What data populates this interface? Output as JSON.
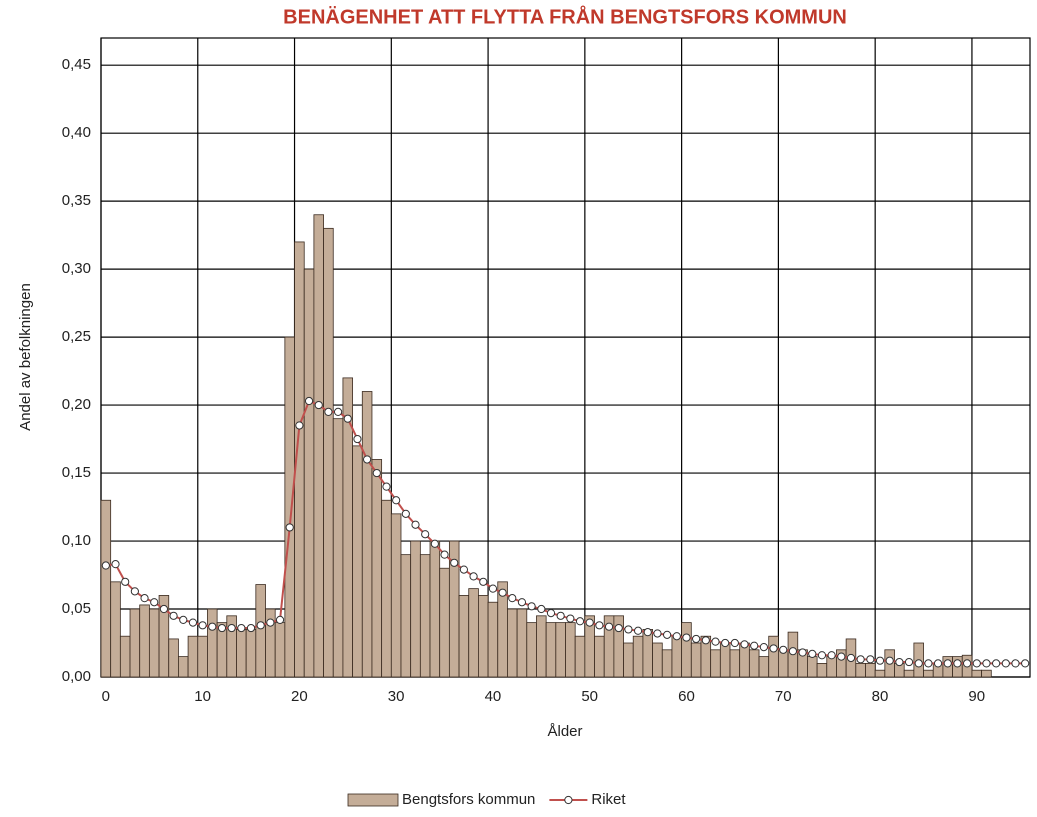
{
  "chart_data": {
    "type": "combo",
    "title": "BENÄGENHET ATT FLYTTA FRÅN BENGTSFORS KOMMUN",
    "x_label": "Ålder",
    "y_label": "Andel av befolkningen",
    "categories": [
      0,
      null,
      null,
      null,
      null,
      null,
      null,
      null,
      null,
      null,
      10,
      null,
      null,
      null,
      null,
      null,
      null,
      null,
      null,
      null,
      20,
      null,
      null,
      null,
      null,
      null,
      null,
      null,
      null,
      null,
      30,
      null,
      null,
      null,
      null,
      null,
      null,
      null,
      null,
      null,
      40,
      null,
      null,
      null,
      null,
      null,
      null,
      null,
      null,
      null,
      50,
      null,
      null,
      null,
      null,
      null,
      null,
      null,
      null,
      null,
      60,
      null,
      null,
      null,
      null,
      null,
      null,
      null,
      null,
      null,
      70,
      null,
      null,
      null,
      null,
      null,
      null,
      null,
      null,
      null,
      80,
      null,
      null,
      null,
      null,
      null,
      null,
      null,
      null,
      null,
      90,
      null,
      null,
      null,
      null,
      null
    ],
    "series": [
      {
        "name": "Bengtsfors kommun",
        "type": "bar",
        "color": "#c4ad98",
        "values": [
          0.13,
          0.07,
          0.03,
          0.05,
          0.053,
          0.05,
          0.06,
          0.028,
          0.015,
          0.03,
          0.03,
          0.05,
          0.04,
          0.045,
          0.035,
          0.035,
          0.068,
          0.05,
          0.04,
          0.25,
          0.32,
          0.3,
          0.34,
          0.33,
          0.19,
          0.22,
          0.17,
          0.21,
          0.16,
          0.13,
          0.12,
          0.09,
          0.1,
          0.09,
          0.1,
          0.08,
          0.1,
          0.06,
          0.065,
          0.06,
          0.055,
          0.07,
          0.05,
          0.05,
          0.04,
          0.045,
          0.04,
          0.04,
          0.04,
          0.03,
          0.045,
          0.03,
          0.045,
          0.045,
          0.025,
          0.03,
          0.035,
          0.025,
          0.02,
          0.03,
          0.04,
          0.025,
          0.03,
          0.02,
          0.025,
          0.02,
          0.025,
          0.02,
          0.015,
          0.03,
          0.02,
          0.033,
          0.02,
          0.015,
          0.01,
          0.015,
          0.02,
          0.028,
          0.01,
          0.01,
          0.005,
          0.02,
          0.01,
          0.005,
          0.025,
          0.005,
          0.01,
          0.015,
          0.015,
          0.016,
          0.005,
          0.005,
          0,
          0,
          0,
          0
        ]
      },
      {
        "name": "Riket",
        "type": "line",
        "color": "#c0504d",
        "values": [
          0.082,
          0.083,
          0.07,
          0.063,
          0.058,
          0.055,
          0.05,
          0.045,
          0.042,
          0.04,
          0.038,
          0.037,
          0.036,
          0.036,
          0.036,
          0.036,
          0.038,
          0.04,
          0.042,
          0.11,
          0.185,
          0.203,
          0.2,
          0.195,
          0.195,
          0.19,
          0.175,
          0.16,
          0.15,
          0.14,
          0.13,
          0.12,
          0.112,
          0.105,
          0.098,
          0.09,
          0.084,
          0.079,
          0.074,
          0.07,
          0.065,
          0.062,
          0.058,
          0.055,
          0.052,
          0.05,
          0.047,
          0.045,
          0.043,
          0.041,
          0.04,
          0.038,
          0.037,
          0.036,
          0.035,
          0.034,
          0.033,
          0.032,
          0.031,
          0.03,
          0.029,
          0.028,
          0.027,
          0.026,
          0.025,
          0.025,
          0.024,
          0.023,
          0.022,
          0.021,
          0.02,
          0.019,
          0.018,
          0.017,
          0.016,
          0.016,
          0.015,
          0.014,
          0.013,
          0.013,
          0.012,
          0.012,
          0.011,
          0.011,
          0.01,
          0.01,
          0.01,
          0.01,
          0.01,
          0.01,
          0.01,
          0.01,
          0.01,
          0.01,
          0.01,
          0.01
        ]
      }
    ],
    "ylim": [
      0,
      0.47
    ],
    "yticks": [
      {
        "value": 0,
        "label": "0,00"
      },
      {
        "value": 0.05,
        "label": "0,05"
      },
      {
        "value": 0.1,
        "label": "0,10"
      },
      {
        "value": 0.15,
        "label": "0,15"
      },
      {
        "value": 0.2,
        "label": "0,20"
      },
      {
        "value": 0.25,
        "label": "0,25"
      },
      {
        "value": 0.3,
        "label": "0,30"
      },
      {
        "value": 0.35,
        "label": "0,35"
      },
      {
        "value": 0.4,
        "label": "0,40"
      },
      {
        "value": 0.45,
        "label": "0,45"
      }
    ],
    "grid": true,
    "legend": "bottom",
    "title_color": "#c0392b"
  }
}
